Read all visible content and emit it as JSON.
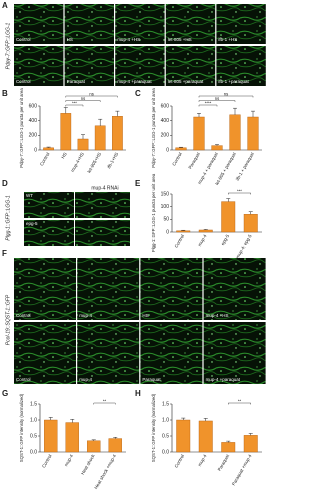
{
  "figure": {
    "letters": [
      "A",
      "B",
      "C",
      "D",
      "E",
      "F",
      "G",
      "H"
    ],
    "A": {
      "side_label": "Pdpy-7::GFP::LGG-1",
      "rows": [
        [
          "Control",
          "HS",
          "mup-4 +HS",
          "let-805 +HS",
          "ifb-1 +HS"
        ],
        [
          "Control",
          "Paraquat",
          "mup-4 +paraquat",
          "let-805 +paraquat",
          "ifb-1 +paraquat"
        ]
      ]
    },
    "D": {
      "side_label": "Plgg-1::GFP::LGG-1",
      "column_header": "mup-4 RNAi",
      "rows": [
        "WT",
        "epg-5"
      ]
    },
    "F": {
      "side_label": "Pcol-19::SQST-1::GFP",
      "rows": [
        [
          "Control",
          "mup-4",
          "HS",
          "mup-4 +HS"
        ],
        [
          "Control",
          "mup-4",
          "Paraquat",
          "mup-4 +paraquat"
        ]
      ]
    }
  },
  "chart_data": [
    {
      "type": "bar",
      "ylabel": "Pdpy-7::GFP::LGG-1 puncta per unit area",
      "categories": [
        "Control",
        "HS",
        "mup-4+HS",
        "let-805+HS",
        "ifb-1+HS"
      ],
      "values": [
        30,
        500,
        150,
        330,
        460
      ],
      "errors": [
        10,
        80,
        60,
        90,
        70
      ],
      "color": "#f0932b",
      "ylim": [
        0,
        600
      ],
      "yticks": [
        0,
        200,
        400,
        600
      ],
      "annotations": [
        "***",
        "ns",
        "ns"
      ]
    },
    {
      "type": "bar",
      "ylabel": "Pdpy-7::GFP::LGG-1 puncta per unit area",
      "categories": [
        "Control",
        "Paraquat",
        "mup-4 + paraquat",
        "let-805 + paraquat",
        "ifb-1 + paraquat"
      ],
      "values": [
        30,
        450,
        60,
        480,
        450
      ],
      "errors": [
        8,
        50,
        15,
        90,
        80
      ],
      "color": "#f0932b",
      "ylim": [
        0,
        600
      ],
      "yticks": [
        0,
        200,
        400,
        600
      ],
      "annotations": [
        "****",
        "ns",
        "ns"
      ]
    },
    {
      "type": "bar",
      "ylabel": "Plgg-1::GFP::LGG-1 puncta per unit area",
      "categories": [
        "Control",
        "mup-4",
        "epg-5",
        "mup-4; epg-5"
      ],
      "values": [
        5,
        8,
        120,
        70
      ],
      "errors": [
        2,
        2,
        12,
        10
      ],
      "color": "#f0932b",
      "ylim": [
        0,
        150
      ],
      "yticks": [
        0,
        50,
        100,
        150
      ],
      "annotations": [
        "***"
      ]
    },
    {
      "type": "bar",
      "ylabel": "SQST-1::GFP intensity (normalized)",
      "categories": [
        "Control",
        "mup-4",
        "Heat shock",
        "Heat shock +mup-4"
      ],
      "values": [
        1.0,
        0.92,
        0.35,
        0.42
      ],
      "errors": [
        0.08,
        0.1,
        0.03,
        0.04
      ],
      "color": "#f0932b",
      "ylim": [
        0,
        1.5
      ],
      "yticks": [
        {
          "value": 0,
          "label": "0.0"
        },
        {
          "value": 0.5,
          "label": "0.5"
        },
        {
          "value": 1,
          "label": "1.0"
        },
        {
          "value": 1.5,
          "label": "1.5"
        }
      ],
      "annotations": [
        "**"
      ]
    },
    {
      "type": "bar",
      "ylabel": "SQST-1::GFP intensity (normalized)",
      "categories": [
        "Control",
        "mup-4",
        "Paraquat",
        "Paraquat +mup-4"
      ],
      "values": [
        1.0,
        0.97,
        0.3,
        0.52
      ],
      "errors": [
        0.06,
        0.08,
        0.04,
        0.06
      ],
      "color": "#f0932b",
      "ylim": [
        0,
        1.5
      ],
      "yticks": [
        {
          "value": 0,
          "label": "0.0"
        },
        {
          "value": 0.5,
          "label": "0.5"
        },
        {
          "value": 1,
          "label": "1.0"
        },
        {
          "value": 1.5,
          "label": "1.5"
        }
      ],
      "annotations": [
        "**"
      ]
    }
  ]
}
